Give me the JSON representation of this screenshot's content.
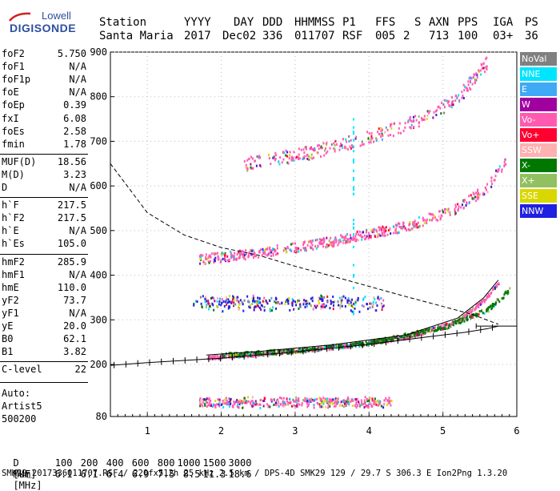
{
  "logo": {
    "line1": "Lowell",
    "line2": "DIGISONDE"
  },
  "header": {
    "labels": [
      "Station",
      "YYYY",
      "DAY",
      "DDD",
      "HHMMSS",
      "P1",
      "FFS",
      "S",
      "AXN",
      "PPS",
      "IGA",
      "PS"
    ],
    "values": [
      "Santa Maria",
      "2017",
      "Dec02",
      "336",
      "011707",
      "RSF",
      "005",
      "2",
      "713",
      "100",
      "03+",
      "36"
    ]
  },
  "params": [
    {
      "name": "foF2",
      "value": "5.750"
    },
    {
      "name": "foF1",
      "value": "N/A"
    },
    {
      "name": "foF1p",
      "value": "N/A"
    },
    {
      "name": "foE",
      "value": "N/A"
    },
    {
      "name": "foEp",
      "value": "0.39"
    },
    {
      "name": "fxI",
      "value": "6.08"
    },
    {
      "name": "foEs",
      "value": "2.58"
    },
    {
      "name": "fmin",
      "value": "1.78"
    },
    {
      "name": "MUF(D)",
      "value": "18.56"
    },
    {
      "name": "M(D)",
      "value": "3.23"
    },
    {
      "name": "D",
      "value": "N/A"
    },
    {
      "name": "h`F",
      "value": "217.5"
    },
    {
      "name": "h`F2",
      "value": "217.5"
    },
    {
      "name": "h`E",
      "value": "N/A"
    },
    {
      "name": "h`Es",
      "value": "105.0"
    },
    {
      "name": "hmF2",
      "value": "285.9"
    },
    {
      "name": "hmF1",
      "value": "N/A"
    },
    {
      "name": "hmE",
      "value": "110.0"
    },
    {
      "name": "yF2",
      "value": "73.7"
    },
    {
      "name": "yF1",
      "value": "N/A"
    },
    {
      "name": "yE",
      "value": "20.0"
    },
    {
      "name": "B0",
      "value": "62.1"
    },
    {
      "name": "B1",
      "value": "3.82"
    },
    {
      "name": "C-level",
      "value": "22"
    }
  ],
  "auto": {
    "line1": "Auto:",
    "line2": "Artist5",
    "line3": "500200"
  },
  "legend": [
    {
      "label": "NoVal",
      "color": "#808080"
    },
    {
      "label": "NNE",
      "color": "#00e5ff"
    },
    {
      "label": "E",
      "color": "#3fa9f5"
    },
    {
      "label": "W",
      "color": "#a0009f"
    },
    {
      "label": "Vo-",
      "color": "#ff5ab0"
    },
    {
      "label": "Vo+",
      "color": "#ff0030"
    },
    {
      "label": "SSW",
      "color": "#ffb0b0"
    },
    {
      "label": "X-",
      "color": "#007800"
    },
    {
      "label": "X+",
      "color": "#90c060"
    },
    {
      "label": "SSE",
      "color": "#d8d800"
    },
    {
      "label": "NNW",
      "color": "#2020e0"
    }
  ],
  "distance_table": {
    "d_label": "D",
    "muf_label": "MUF",
    "d_values": [
      "100",
      "200",
      "400",
      "600",
      "800",
      "1000",
      "1500",
      "3000"
    ],
    "d_unit": "[km]",
    "muf_values": [
      "6.1",
      "6.1",
      "6.4",
      "6.9",
      "7.5",
      "8.5",
      "11.3",
      "18.6"
    ],
    "muf_unit": "[MHz]"
  },
  "footer": "SMK29_2017336011707.RSF / 220fx512h 25 kHz 2.5 km / DPS-4D SMK29 129 / 29.7 S 306.3 E Ion2Png 1.3.20",
  "chart_data": {
    "type": "scatter",
    "xlim": [
      0.5,
      6.0
    ],
    "ylim": [
      80,
      900
    ],
    "x_ticks": [
      "1",
      "2",
      "3",
      "4",
      "5",
      "6"
    ],
    "y_ticks": [
      "80",
      "200",
      "300",
      "400",
      "500",
      "600",
      "700",
      "800",
      "900"
    ],
    "traces": [
      {
        "name": "Es low",
        "color": "#ff5ab0",
        "freq_range": [
          1.7,
          4.3
        ],
        "height": [
          105,
          125
        ]
      },
      {
        "name": "F2 O-trace",
        "color": "#ff5ab0",
        "points": [
          [
            1.8,
            217
          ],
          [
            2.5,
            225
          ],
          [
            3.5,
            240
          ],
          [
            4.5,
            262
          ],
          [
            5.2,
            300
          ],
          [
            5.55,
            345
          ],
          [
            5.75,
            385
          ]
        ]
      },
      {
        "name": "F2 X-trace",
        "color": "#007800",
        "points": [
          [
            2.0,
            222
          ],
          [
            3.0,
            233
          ],
          [
            4.0,
            250
          ],
          [
            5.0,
            285
          ],
          [
            5.6,
            325
          ],
          [
            5.9,
            370
          ]
        ]
      },
      {
        "name": "Es 2nd hop",
        "color": "#2020e0",
        "freq_range": [
          1.6,
          4.2
        ],
        "height": [
          330,
          350
        ]
      },
      {
        "name": "F 2nd hop",
        "color": "#ff5ab0",
        "points": [
          [
            1.7,
            437
          ],
          [
            2.5,
            452
          ],
          [
            3.5,
            478
          ],
          [
            4.5,
            512
          ],
          [
            5.2,
            552
          ],
          [
            5.6,
            600
          ],
          [
            5.85,
            660
          ]
        ]
      },
      {
        "name": "F 3rd hop",
        "color": "#ff5ab0",
        "points": [
          [
            2.3,
            650
          ],
          [
            3.3,
            680
          ],
          [
            4.2,
            720
          ],
          [
            4.8,
            760
          ],
          [
            5.2,
            800
          ],
          [
            5.6,
            880
          ]
        ]
      }
    ],
    "profile": {
      "name": "electron density profile",
      "points": [
        [
          0.5,
          198
        ],
        [
          1.0,
          204
        ],
        [
          2.0,
          214
        ],
        [
          3.0,
          228
        ],
        [
          4.0,
          245
        ],
        [
          4.8,
          262
        ],
        [
          5.3,
          272
        ],
        [
          5.6,
          280
        ],
        [
          5.75,
          286
        ]
      ]
    },
    "model_dashed": {
      "points": [
        [
          0.5,
          650
        ],
        [
          1.0,
          540
        ],
        [
          1.5,
          490
        ],
        [
          2.0,
          462
        ],
        [
          2.5,
          445
        ],
        [
          3.0,
          420
        ],
        [
          3.5,
          398
        ],
        [
          4.0,
          375
        ],
        [
          4.5,
          352
        ],
        [
          5.0,
          330
        ],
        [
          5.4,
          312
        ],
        [
          5.75,
          290
        ]
      ]
    }
  }
}
